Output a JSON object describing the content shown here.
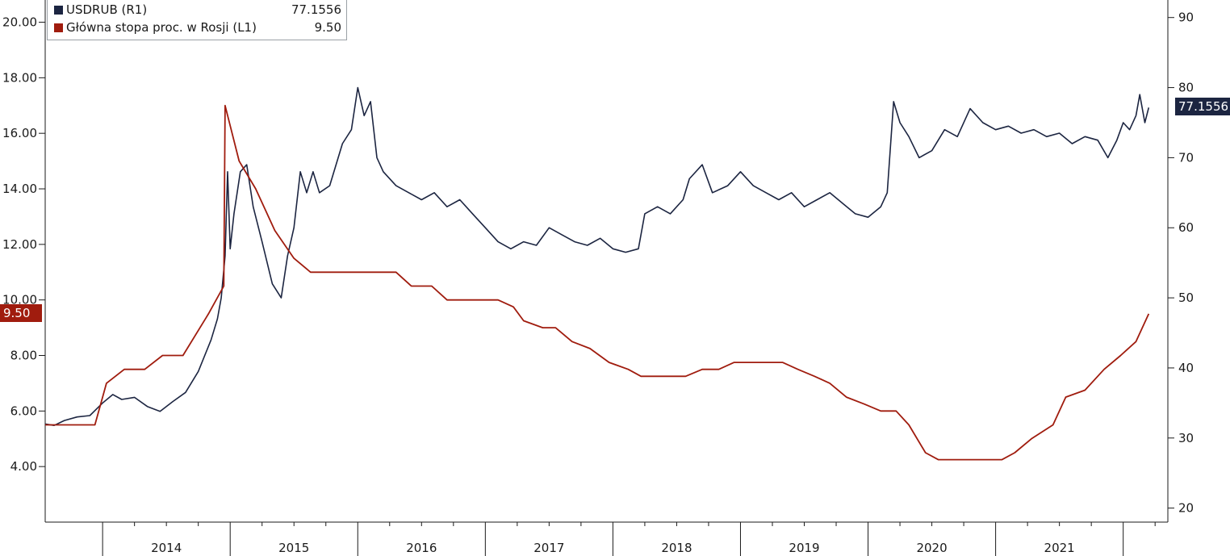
{
  "chart_data": {
    "type": "line",
    "title": "",
    "x_categories": [
      "2014",
      "2015",
      "2016",
      "2017",
      "2018",
      "2019",
      "2020",
      "2021"
    ],
    "left_axis": {
      "ticks": [
        "4.00",
        "6.00",
        "8.00",
        "10.00",
        "12.00",
        "14.00",
        "16.00",
        "18.00",
        "20.00"
      ],
      "ylim": [
        2,
        20.8
      ]
    },
    "right_axis": {
      "ticks": [
        "20",
        "30",
        "40",
        "50",
        "60",
        "70",
        "80",
        "90"
      ],
      "ylim": [
        18,
        92.5
      ]
    },
    "grid": false,
    "legend": {
      "position": "top-left",
      "entries": [
        {
          "label": "USDRUB (R1)",
          "value": "77.1556",
          "color": "#1c2541"
        },
        {
          "label": "Główna stopa proc. w Rosji (L1)",
          "value": "9.50",
          "color": "#a01c0e"
        }
      ]
    },
    "last_value_tags": {
      "usdrub": "77.1556",
      "rate": "9.50"
    },
    "series": [
      {
        "name": "USDRUB (R1)",
        "axis": "right",
        "color": "#1c2541",
        "points": [
          [
            2013.55,
            32.0
          ],
          [
            2013.62,
            31.8
          ],
          [
            2013.7,
            32.5
          ],
          [
            2013.8,
            33.0
          ],
          [
            2013.9,
            33.2
          ],
          [
            2014.0,
            35.0
          ],
          [
            2014.08,
            36.2
          ],
          [
            2014.15,
            35.5
          ],
          [
            2014.25,
            35.8
          ],
          [
            2014.35,
            34.5
          ],
          [
            2014.45,
            33.8
          ],
          [
            2014.55,
            35.2
          ],
          [
            2014.65,
            36.5
          ],
          [
            2014.75,
            39.5
          ],
          [
            2014.85,
            44.0
          ],
          [
            2014.9,
            47.0
          ],
          [
            2014.93,
            50.0
          ],
          [
            2014.96,
            56.0
          ],
          [
            2014.98,
            68.0
          ],
          [
            2015.0,
            57.0
          ],
          [
            2015.03,
            62.0
          ],
          [
            2015.08,
            68.0
          ],
          [
            2015.13,
            69.0
          ],
          [
            2015.18,
            63.0
          ],
          [
            2015.25,
            58.0
          ],
          [
            2015.33,
            52.0
          ],
          [
            2015.4,
            50.0
          ],
          [
            2015.45,
            56.0
          ],
          [
            2015.5,
            60.0
          ],
          [
            2015.55,
            68.0
          ],
          [
            2015.6,
            65.0
          ],
          [
            2015.65,
            68.0
          ],
          [
            2015.7,
            65.0
          ],
          [
            2015.78,
            66.0
          ],
          [
            2015.88,
            72.0
          ],
          [
            2015.95,
            74.0
          ],
          [
            2016.0,
            80.0
          ],
          [
            2016.05,
            76.0
          ],
          [
            2016.1,
            78.0
          ],
          [
            2016.15,
            70.0
          ],
          [
            2016.2,
            68.0
          ],
          [
            2016.3,
            66.0
          ],
          [
            2016.4,
            65.0
          ],
          [
            2016.5,
            64.0
          ],
          [
            2016.6,
            65.0
          ],
          [
            2016.7,
            63.0
          ],
          [
            2016.8,
            64.0
          ],
          [
            2016.9,
            62.0
          ],
          [
            2017.0,
            60.0
          ],
          [
            2017.1,
            58.0
          ],
          [
            2017.2,
            57.0
          ],
          [
            2017.3,
            58.0
          ],
          [
            2017.4,
            57.5
          ],
          [
            2017.5,
            60.0
          ],
          [
            2017.6,
            59.0
          ],
          [
            2017.7,
            58.0
          ],
          [
            2017.8,
            57.5
          ],
          [
            2017.9,
            58.5
          ],
          [
            2018.0,
            57.0
          ],
          [
            2018.1,
            56.5
          ],
          [
            2018.2,
            57.0
          ],
          [
            2018.25,
            62.0
          ],
          [
            2018.35,
            63.0
          ],
          [
            2018.45,
            62.0
          ],
          [
            2018.55,
            64.0
          ],
          [
            2018.6,
            67.0
          ],
          [
            2018.7,
            69.0
          ],
          [
            2018.78,
            65.0
          ],
          [
            2018.9,
            66.0
          ],
          [
            2019.0,
            68.0
          ],
          [
            2019.1,
            66.0
          ],
          [
            2019.2,
            65.0
          ],
          [
            2019.3,
            64.0
          ],
          [
            2019.4,
            65.0
          ],
          [
            2019.5,
            63.0
          ],
          [
            2019.6,
            64.0
          ],
          [
            2019.7,
            65.0
          ],
          [
            2019.8,
            63.5
          ],
          [
            2019.9,
            62.0
          ],
          [
            2020.0,
            61.5
          ],
          [
            2020.1,
            63.0
          ],
          [
            2020.15,
            65.0
          ],
          [
            2020.2,
            78.0
          ],
          [
            2020.25,
            75.0
          ],
          [
            2020.32,
            73.0
          ],
          [
            2020.4,
            70.0
          ],
          [
            2020.5,
            71.0
          ],
          [
            2020.6,
            74.0
          ],
          [
            2020.7,
            73.0
          ],
          [
            2020.8,
            77.0
          ],
          [
            2020.9,
            75.0
          ],
          [
            2021.0,
            74.0
          ],
          [
            2021.1,
            74.5
          ],
          [
            2021.2,
            73.5
          ],
          [
            2021.3,
            74.0
          ],
          [
            2021.4,
            73.0
          ],
          [
            2021.5,
            73.5
          ],
          [
            2021.6,
            72.0
          ],
          [
            2021.7,
            73.0
          ],
          [
            2021.8,
            72.5
          ],
          [
            2021.88,
            70.0
          ],
          [
            2021.95,
            72.5
          ],
          [
            2022.0,
            75.0
          ],
          [
            2022.05,
            74.0
          ],
          [
            2022.1,
            76.0
          ],
          [
            2022.13,
            79.0
          ],
          [
            2022.17,
            75.0
          ],
          [
            2022.2,
            77.1556
          ]
        ]
      },
      {
        "name": "Główna stopa proc. w Rosji (L1)",
        "axis": "left",
        "color": "#a01c0e",
        "points": [
          [
            2013.55,
            5.5
          ],
          [
            2013.94,
            5.5
          ],
          [
            2014.03,
            7.0
          ],
          [
            2014.17,
            7.5
          ],
          [
            2014.33,
            7.5
          ],
          [
            2014.47,
            8.0
          ],
          [
            2014.63,
            8.0
          ],
          [
            2014.83,
            9.5
          ],
          [
            2014.95,
            10.5
          ],
          [
            2014.96,
            17.0
          ],
          [
            2015.07,
            15.0
          ],
          [
            2015.2,
            14.0
          ],
          [
            2015.35,
            12.5
          ],
          [
            2015.5,
            11.5
          ],
          [
            2015.63,
            11.0
          ],
          [
            2015.92,
            11.0
          ],
          [
            2016.2,
            11.0
          ],
          [
            2016.3,
            11.0
          ],
          [
            2016.42,
            10.5
          ],
          [
            2016.58,
            10.5
          ],
          [
            2016.7,
            10.0
          ],
          [
            2016.93,
            10.0
          ],
          [
            2017.1,
            10.0
          ],
          [
            2017.22,
            9.75
          ],
          [
            2017.3,
            9.25
          ],
          [
            2017.45,
            9.0
          ],
          [
            2017.55,
            9.0
          ],
          [
            2017.68,
            8.5
          ],
          [
            2017.82,
            8.25
          ],
          [
            2017.97,
            7.75
          ],
          [
            2018.12,
            7.5
          ],
          [
            2018.22,
            7.25
          ],
          [
            2018.45,
            7.25
          ],
          [
            2018.57,
            7.25
          ],
          [
            2018.7,
            7.5
          ],
          [
            2018.83,
            7.5
          ],
          [
            2018.95,
            7.75
          ],
          [
            2019.2,
            7.75
          ],
          [
            2019.33,
            7.75
          ],
          [
            2019.45,
            7.5
          ],
          [
            2019.58,
            7.25
          ],
          [
            2019.7,
            7.0
          ],
          [
            2019.83,
            6.5
          ],
          [
            2019.97,
            6.25
          ],
          [
            2020.1,
            6.0
          ],
          [
            2020.22,
            6.0
          ],
          [
            2020.32,
            5.5
          ],
          [
            2020.45,
            4.5
          ],
          [
            2020.55,
            4.25
          ],
          [
            2020.7,
            4.25
          ],
          [
            2021.05,
            4.25
          ],
          [
            2021.15,
            4.5
          ],
          [
            2021.28,
            5.0
          ],
          [
            2021.45,
            5.5
          ],
          [
            2021.55,
            6.5
          ],
          [
            2021.7,
            6.75
          ],
          [
            2021.85,
            7.5
          ],
          [
            2021.98,
            8.0
          ],
          [
            2022.1,
            8.5
          ],
          [
            2022.2,
            9.5
          ]
        ]
      }
    ]
  }
}
